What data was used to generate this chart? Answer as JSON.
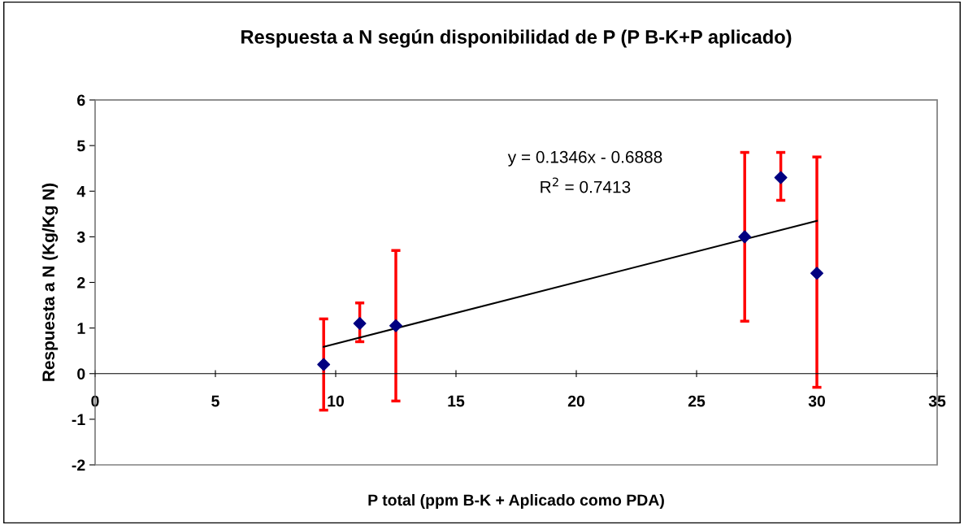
{
  "chart_data": {
    "type": "scatter",
    "title": "Respuesta a N según disponibilidad de P (P B-K+P aplicado)",
    "xlabel": "P total (ppm B-K + Aplicado como PDA)",
    "ylabel": "Respuesta a N (Kg/Kg N)",
    "series": [
      {
        "color": "#000080",
        "marker": "diamond",
        "x": [
          9.5,
          11,
          12.5,
          27,
          28.5,
          30
        ],
        "values": [
          0.2,
          1.1,
          1.05,
          3.0,
          4.3,
          2.2
        ],
        "errors": [
          [
            -0.8,
            1.2
          ],
          [
            0.7,
            1.55
          ],
          [
            -0.6,
            2.7
          ],
          [
            1.15,
            4.85
          ],
          [
            3.8,
            4.85
          ],
          [
            -0.3,
            4.75
          ]
        ]
      },
      {
        "type": "line",
        "color": "#000000",
        "marker": "none",
        "x": [
          9.5,
          30
        ],
        "values": [
          0.59,
          3.35
        ]
      }
    ],
    "annotations": [
      "y = 0.1346x - 0.6888",
      "R$^{2}$ = 0.7413"
    ],
    "xlim": [
      0,
      35
    ],
    "xticks": [
      0,
      5,
      10,
      15,
      20,
      25,
      30,
      35
    ],
    "ylim": [
      -2,
      6
    ],
    "yticks": [
      -2,
      -1,
      0,
      1,
      2,
      3,
      4,
      5,
      6
    ],
    "grid": false,
    "legend": false
  }
}
